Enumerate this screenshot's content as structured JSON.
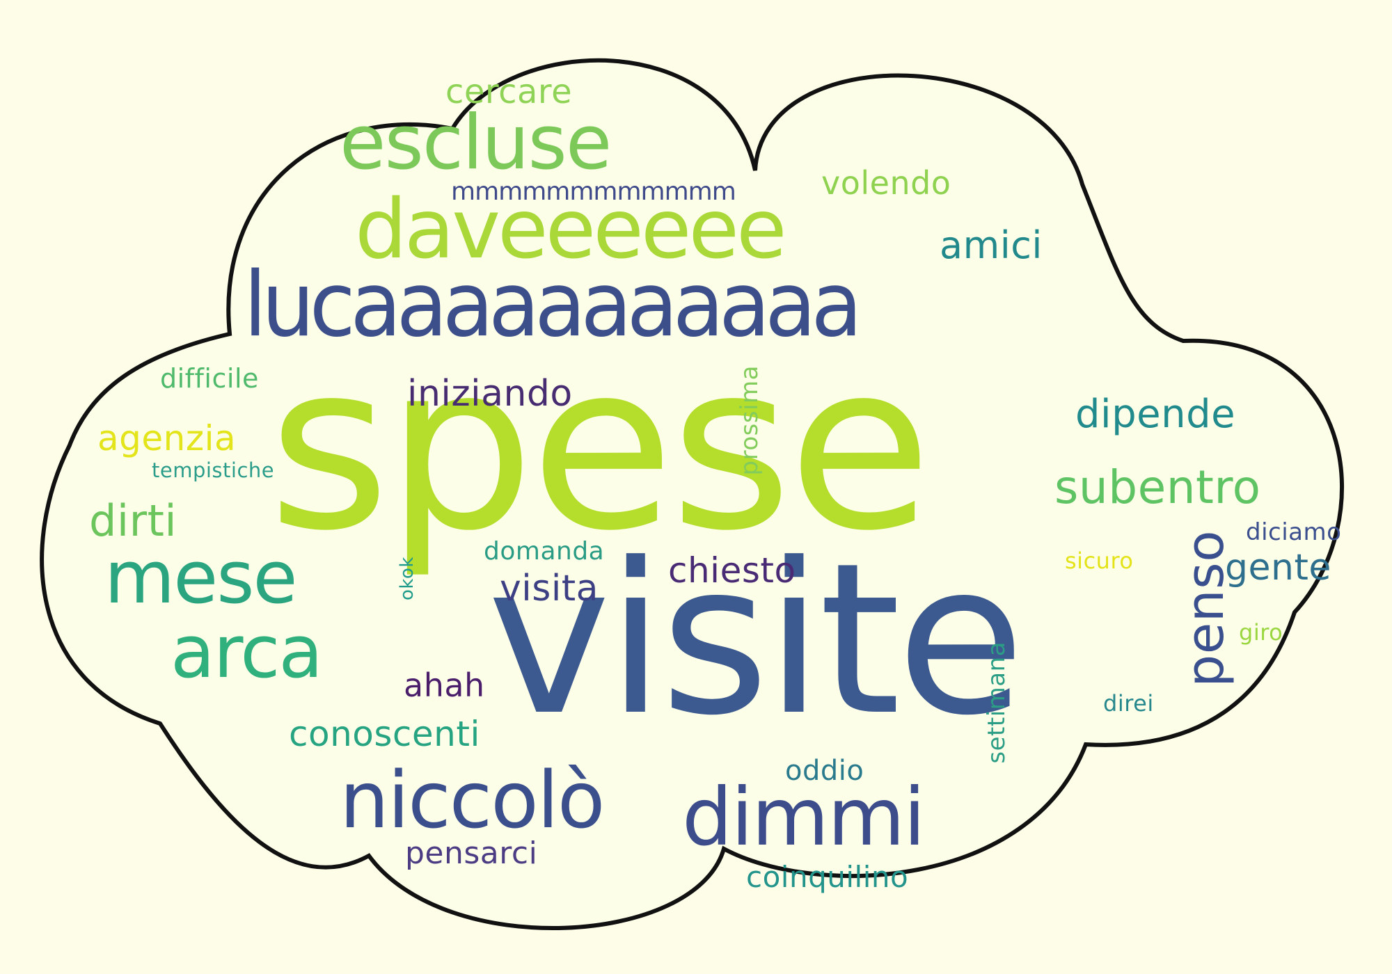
{
  "colors": {
    "background": "#fefee8",
    "cloud_fill": "#fcfee8",
    "cloud_outline": "#111111"
  },
  "words": {
    "spese": {
      "text": "spese",
      "color": "#b5dd2b"
    },
    "visite": {
      "text": "visite",
      "color": "#3c5a8f"
    },
    "lucaaaaaaaaaaa": {
      "text": "lucaaaaaaaaaaa",
      "color": "#3d4f8b"
    },
    "daveeeeee": {
      "text": "daveeeeee",
      "color": "#a9d838"
    },
    "escluse": {
      "text": "escluse",
      "color": "#7cc95a"
    },
    "mmmmmmmmmmmm": {
      "text": "mmmmmmmmmmmm",
      "color": "#3f4a8b"
    },
    "cercare": {
      "text": "cercare",
      "color": "#8fd356"
    },
    "volendo": {
      "text": "volendo",
      "color": "#8ed24f"
    },
    "amici": {
      "text": "amici",
      "color": "#21898b"
    },
    "difficile": {
      "text": "difficile",
      "color": "#4fb96c"
    },
    "agenzia": {
      "text": "agenzia",
      "color": "#e3e419"
    },
    "tempistiche": {
      "text": "tempistiche",
      "color": "#2c9d8b"
    },
    "dirti": {
      "text": "dirti",
      "color": "#6cc55c"
    },
    "mese": {
      "text": "mese",
      "color": "#2aa580"
    },
    "arca": {
      "text": "arca",
      "color": "#2fb07c"
    },
    "iniziando": {
      "text": "iniziando",
      "color": "#472c72"
    },
    "prossima": {
      "text": "prossima",
      "color": "#82cc5c"
    },
    "dipende": {
      "text": "dipende",
      "color": "#208a8c"
    },
    "subentro": {
      "text": "subentro",
      "color": "#5ec363"
    },
    "domanda": {
      "text": "domanda",
      "color": "#2a9c85"
    },
    "visita": {
      "text": "visita",
      "color": "#3c3f83"
    },
    "chiesto": {
      "text": "chiesto",
      "color": "#482b74"
    },
    "okok": {
      "text": "okok",
      "color": "#1e9b8a"
    },
    "penso": {
      "text": "penso",
      "color": "#3a4f8e"
    },
    "diciamo": {
      "text": "diciamo",
      "color": "#3b4f8e"
    },
    "sicuro": {
      "text": "sicuro",
      "color": "#e4e31a"
    },
    "gente": {
      "text": "gente",
      "color": "#2e6f8e"
    },
    "giro": {
      "text": "giro",
      "color": "#9ad640"
    },
    "ahah": {
      "text": "ahah",
      "color": "#4b1e6c"
    },
    "settimana": {
      "text": "settimana",
      "color": "#2d9e86"
    },
    "direi": {
      "text": "direi",
      "color": "#26878d"
    },
    "conoscenti": {
      "text": "conoscenti",
      "color": "#26a482"
    },
    "oddio": {
      "text": "oddio",
      "color": "#2a7a8e"
    },
    "niccolo": {
      "text": "niccolò",
      "color": "#3a4f8c"
    },
    "dimmi": {
      "text": "dimmi",
      "color": "#3d4c8b"
    },
    "pensarci": {
      "text": "pensarci",
      "color": "#4b3c84"
    },
    "coinquilino": {
      "text": "coinquilino",
      "color": "#22948c"
    }
  }
}
